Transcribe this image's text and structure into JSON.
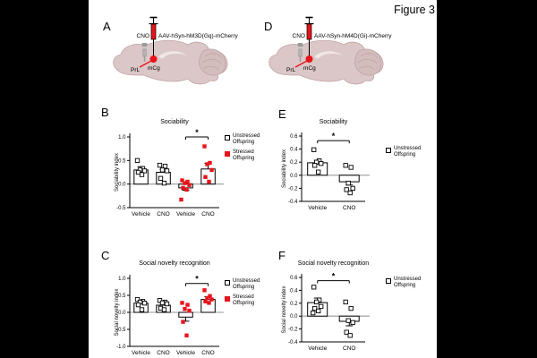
{
  "figure_label": "Figure 3",
  "colors": {
    "accent_red": "#e8141b",
    "brain_fill": "#dbc7c7",
    "brain_fill_dark": "#d2bcbc",
    "brain_stroke": "#c2a4a4",
    "brain_highlight": "#f0e7e7",
    "zero_line": "#9a9a9a",
    "background": "#ffffff",
    "letterbox": "#000000"
  },
  "panels": {
    "a": {
      "letter": "A",
      "cno_label": "CNO",
      "aav_label": "AAV-hSyn-hM3D(Gq)-mCherry",
      "region_prl": "PrL",
      "region_mcg": "mCg"
    },
    "d": {
      "letter": "D",
      "cno_label": "CNO",
      "aav_label": "AAV-hSyn-hM4D(Gi)-mCherry",
      "region_prl": "PrL",
      "region_mcg": "mCg"
    },
    "b": {
      "letter": "B"
    },
    "c": {
      "letter": "C"
    },
    "e": {
      "letter": "E"
    },
    "f": {
      "letter": "F"
    }
  },
  "legends": {
    "b": [
      {
        "label": "Unstressed Offspring",
        "marker": "open"
      },
      {
        "label": "Stressed Offspring",
        "marker": "red"
      }
    ],
    "c": [
      {
        "label": "Unstressed Offspring",
        "marker": "open"
      },
      {
        "label": "Stressed Offspring",
        "marker": "red"
      }
    ],
    "e": [
      {
        "label": "Unstressed Offspring",
        "marker": "open"
      }
    ],
    "f": [
      {
        "label": "Unstressed Offspring",
        "marker": "open"
      }
    ]
  },
  "chart_data": [
    {
      "id": "B",
      "type": "bar",
      "title": "Sociability",
      "ylabel": "Sociability index",
      "ylim": [
        -0.5,
        1.0
      ],
      "yticks": [
        1.0,
        0.5,
        0.0,
        -0.5
      ],
      "categories": [
        "Vehicle",
        "CNO",
        "Vehicle",
        "CNO"
      ],
      "bars": [
        {
          "group": "Unstressed Offspring",
          "x": "Vehicle",
          "mean": 0.3,
          "sem": 0.07,
          "marker": "open",
          "points": [
            0.5,
            0.33,
            0.3,
            0.28,
            0.25,
            0.2
          ]
        },
        {
          "group": "Unstressed Offspring",
          "x": "CNO",
          "mean": 0.25,
          "sem": 0.06,
          "marker": "open",
          "points": [
            0.4,
            0.38,
            0.3,
            0.28,
            0.12,
            0.02
          ]
        },
        {
          "group": "Stressed Offspring",
          "x": "Vehicle",
          "mean": -0.08,
          "sem": 0.05,
          "marker": "red",
          "points": [
            0.08,
            0.05,
            0.02,
            -0.02,
            -0.08,
            -0.12,
            -0.33
          ]
        },
        {
          "group": "Stressed Offspring",
          "x": "CNO",
          "mean": 0.32,
          "sem": 0.12,
          "marker": "red",
          "points": [
            0.8,
            0.45,
            0.42,
            0.3,
            0.15,
            0.05
          ]
        }
      ],
      "significance": {
        "from": 2,
        "to": 3,
        "y": 1.0,
        "label": "*"
      },
      "legend_position": "right",
      "grid": false
    },
    {
      "id": "E",
      "type": "bar",
      "title": "Sociability",
      "ylabel": "Sociability index",
      "ylim": [
        -0.4,
        0.6
      ],
      "yticks": [
        0.6,
        0.4,
        0.2,
        0.0,
        -0.2,
        -0.4
      ],
      "categories": [
        "Vehicle",
        "CNO"
      ],
      "bars": [
        {
          "group": "Unstressed Offspring",
          "x": "Vehicle",
          "mean": 0.19,
          "sem": 0.04,
          "marker": "open",
          "points": [
            0.39,
            0.22,
            0.2,
            0.18,
            0.15,
            0.05
          ]
        },
        {
          "group": "Unstressed Offspring",
          "x": "CNO",
          "mean": -0.1,
          "sem": 0.05,
          "marker": "open",
          "points": [
            0.15,
            0.12,
            -0.12,
            -0.2,
            -0.22,
            -0.27
          ]
        }
      ],
      "significance": {
        "from": 0,
        "to": 1,
        "y": 0.53,
        "label": "*"
      },
      "legend_position": "right",
      "grid": false
    },
    {
      "id": "C",
      "type": "bar",
      "title": "Social novelty recognition",
      "ylabel": "Social novelty index",
      "ylim": [
        -1.0,
        1.0
      ],
      "yticks": [
        1.0,
        0.5,
        0.0,
        -0.5,
        -1.0
      ],
      "categories": [
        "Vehicle",
        "CNO",
        "Vehicle",
        "CNO"
      ],
      "bars": [
        {
          "group": "Unstressed Offspring",
          "x": "Vehicle",
          "mean": 0.27,
          "sem": 0.08,
          "marker": "open",
          "points": [
            0.38,
            0.32,
            0.3,
            0.27,
            0.22,
            0.08
          ]
        },
        {
          "group": "Unstressed Offspring",
          "x": "CNO",
          "mean": 0.21,
          "sem": 0.07,
          "marker": "open",
          "points": [
            0.35,
            0.3,
            0.28,
            0.25,
            0.12,
            0.08
          ]
        },
        {
          "group": "Stressed Offspring",
          "x": "Vehicle",
          "mean": -0.14,
          "sem": 0.12,
          "marker": "red",
          "points": [
            0.28,
            0.22,
            0.1,
            0.05,
            -0.28,
            -0.68
          ]
        },
        {
          "group": "Stressed Offspring",
          "x": "CNO",
          "mean": 0.38,
          "sem": 0.08,
          "marker": "red",
          "points": [
            0.65,
            0.48,
            0.42,
            0.38,
            0.32,
            0.28
          ]
        }
      ],
      "significance": {
        "from": 2,
        "to": 3,
        "y": 0.85,
        "label": "*"
      },
      "legend_position": "right",
      "grid": false
    },
    {
      "id": "F",
      "type": "bar",
      "title": "Social novelty recognition",
      "ylabel": "Social novelty index",
      "ylim": [
        -0.4,
        0.6
      ],
      "yticks": [
        0.6,
        0.4,
        0.2,
        0.0,
        -0.2,
        -0.4
      ],
      "categories": [
        "Vehicle",
        "CNO"
      ],
      "bars": [
        {
          "group": "Unstressed Offspring",
          "x": "Vehicle",
          "mean": 0.21,
          "sem": 0.07,
          "marker": "open",
          "points": [
            0.45,
            0.25,
            0.22,
            0.15,
            0.12,
            0.08,
            0.05
          ]
        },
        {
          "group": "Unstressed Offspring",
          "x": "CNO",
          "mean": -0.08,
          "sem": 0.07,
          "marker": "open",
          "points": [
            0.22,
            0.12,
            -0.07,
            -0.1,
            -0.25,
            -0.3
          ]
        }
      ],
      "significance": {
        "from": 0,
        "to": 1,
        "y": 0.55,
        "label": "*"
      },
      "legend_position": "right",
      "grid": false
    }
  ]
}
